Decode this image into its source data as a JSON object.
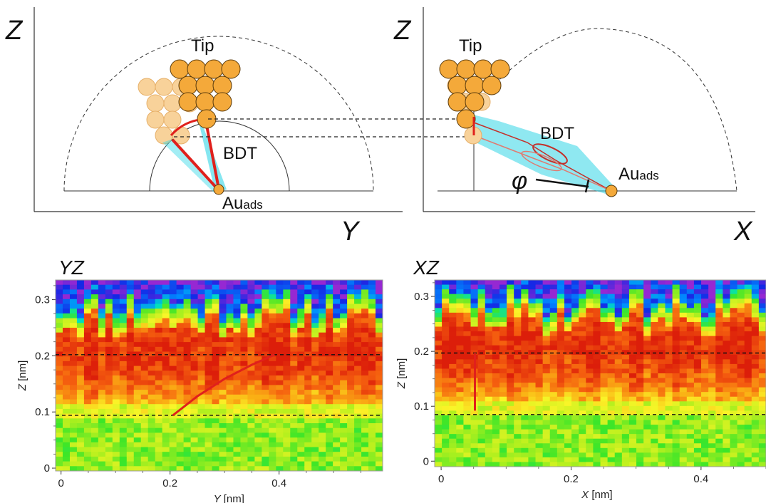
{
  "colors": {
    "atom_tip": "#f4a93a",
    "atom_tip_faded": "#f8d29a",
    "bond_red": "#e0201c",
    "glow_cyan": "#33d6e6",
    "dashed": "#222222"
  },
  "diagram_left": {
    "z_label": "Z",
    "y_label": "Y",
    "tip_label": "Tip",
    "bdt_label": "BDT",
    "au_label_main": "Au",
    "au_label_sub": "ads"
  },
  "diagram_right": {
    "z_label": "Z",
    "x_label": "X",
    "tip_label": "Tip",
    "bdt_label": "BDT",
    "au_label_main": "Au",
    "au_label_sub": "ads",
    "angle_label": "φ"
  },
  "chart_data": [
    {
      "type": "heatmap",
      "title": "YZ",
      "xlabel_var": "Y",
      "xlabel_unit": " [nm]",
      "ylabel_var": "Z",
      "ylabel_unit": " [nm]",
      "xlim": [
        -0.01,
        0.59
      ],
      "ylim": [
        -0.005,
        0.335
      ],
      "xticks": [
        0,
        0.2,
        0.4
      ],
      "xtick_labels": [
        "0",
        "0.2",
        "0.4"
      ],
      "yticks": [
        0,
        0.1,
        0.2,
        0.3
      ],
      "ytick_labels": [
        "0",
        "0.1",
        "0.2",
        "0.3"
      ],
      "dashed_lines_z": [
        0.202,
        0.094
      ],
      "red_curve": {
        "points": [
          [
            0.205,
            0.094
          ],
          [
            0.25,
            0.128
          ],
          [
            0.3,
            0.159
          ],
          [
            0.35,
            0.184
          ],
          [
            0.392,
            0.202
          ]
        ]
      }
    },
    {
      "type": "heatmap",
      "title": "XZ",
      "xlabel_var": "X",
      "xlabel_unit": " [nm]",
      "ylabel_var": "Z",
      "ylabel_unit": " [nm]",
      "xlim": [
        -0.01,
        0.5
      ],
      "ylim": [
        -0.01,
        0.33
      ],
      "xticks": [
        0,
        0.2,
        0.4
      ],
      "xtick_labels": [
        "0",
        "0.2",
        "0.4"
      ],
      "yticks": [
        0,
        0.1,
        0.2,
        0.3
      ],
      "ytick_labels": [
        "0",
        "0.1",
        "0.2",
        "0.3"
      ],
      "dashed_lines_z": [
        0.197,
        0.085
      ],
      "red_curve": {
        "points": [
          [
            0.052,
            0.197
          ],
          [
            0.052,
            0.092
          ]
        ]
      }
    }
  ]
}
